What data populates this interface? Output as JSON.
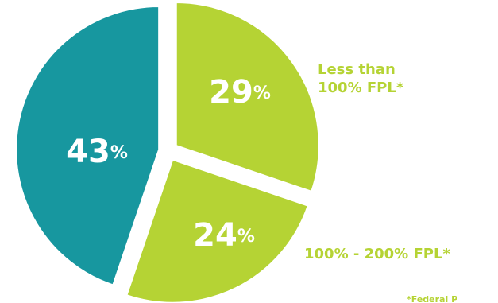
{
  "chart_data": {
    "type": "pie",
    "categories": [
      "Less than 100% FPL*",
      "100% - 200% FPL*",
      null
    ],
    "values": [
      29,
      24,
      43
    ],
    "value_labels": [
      "29%",
      "24%",
      "43%"
    ],
    "colors": [
      "#b5d334",
      "#b5d334",
      "#17979f"
    ],
    "footnote": "*Federal P"
  }
}
